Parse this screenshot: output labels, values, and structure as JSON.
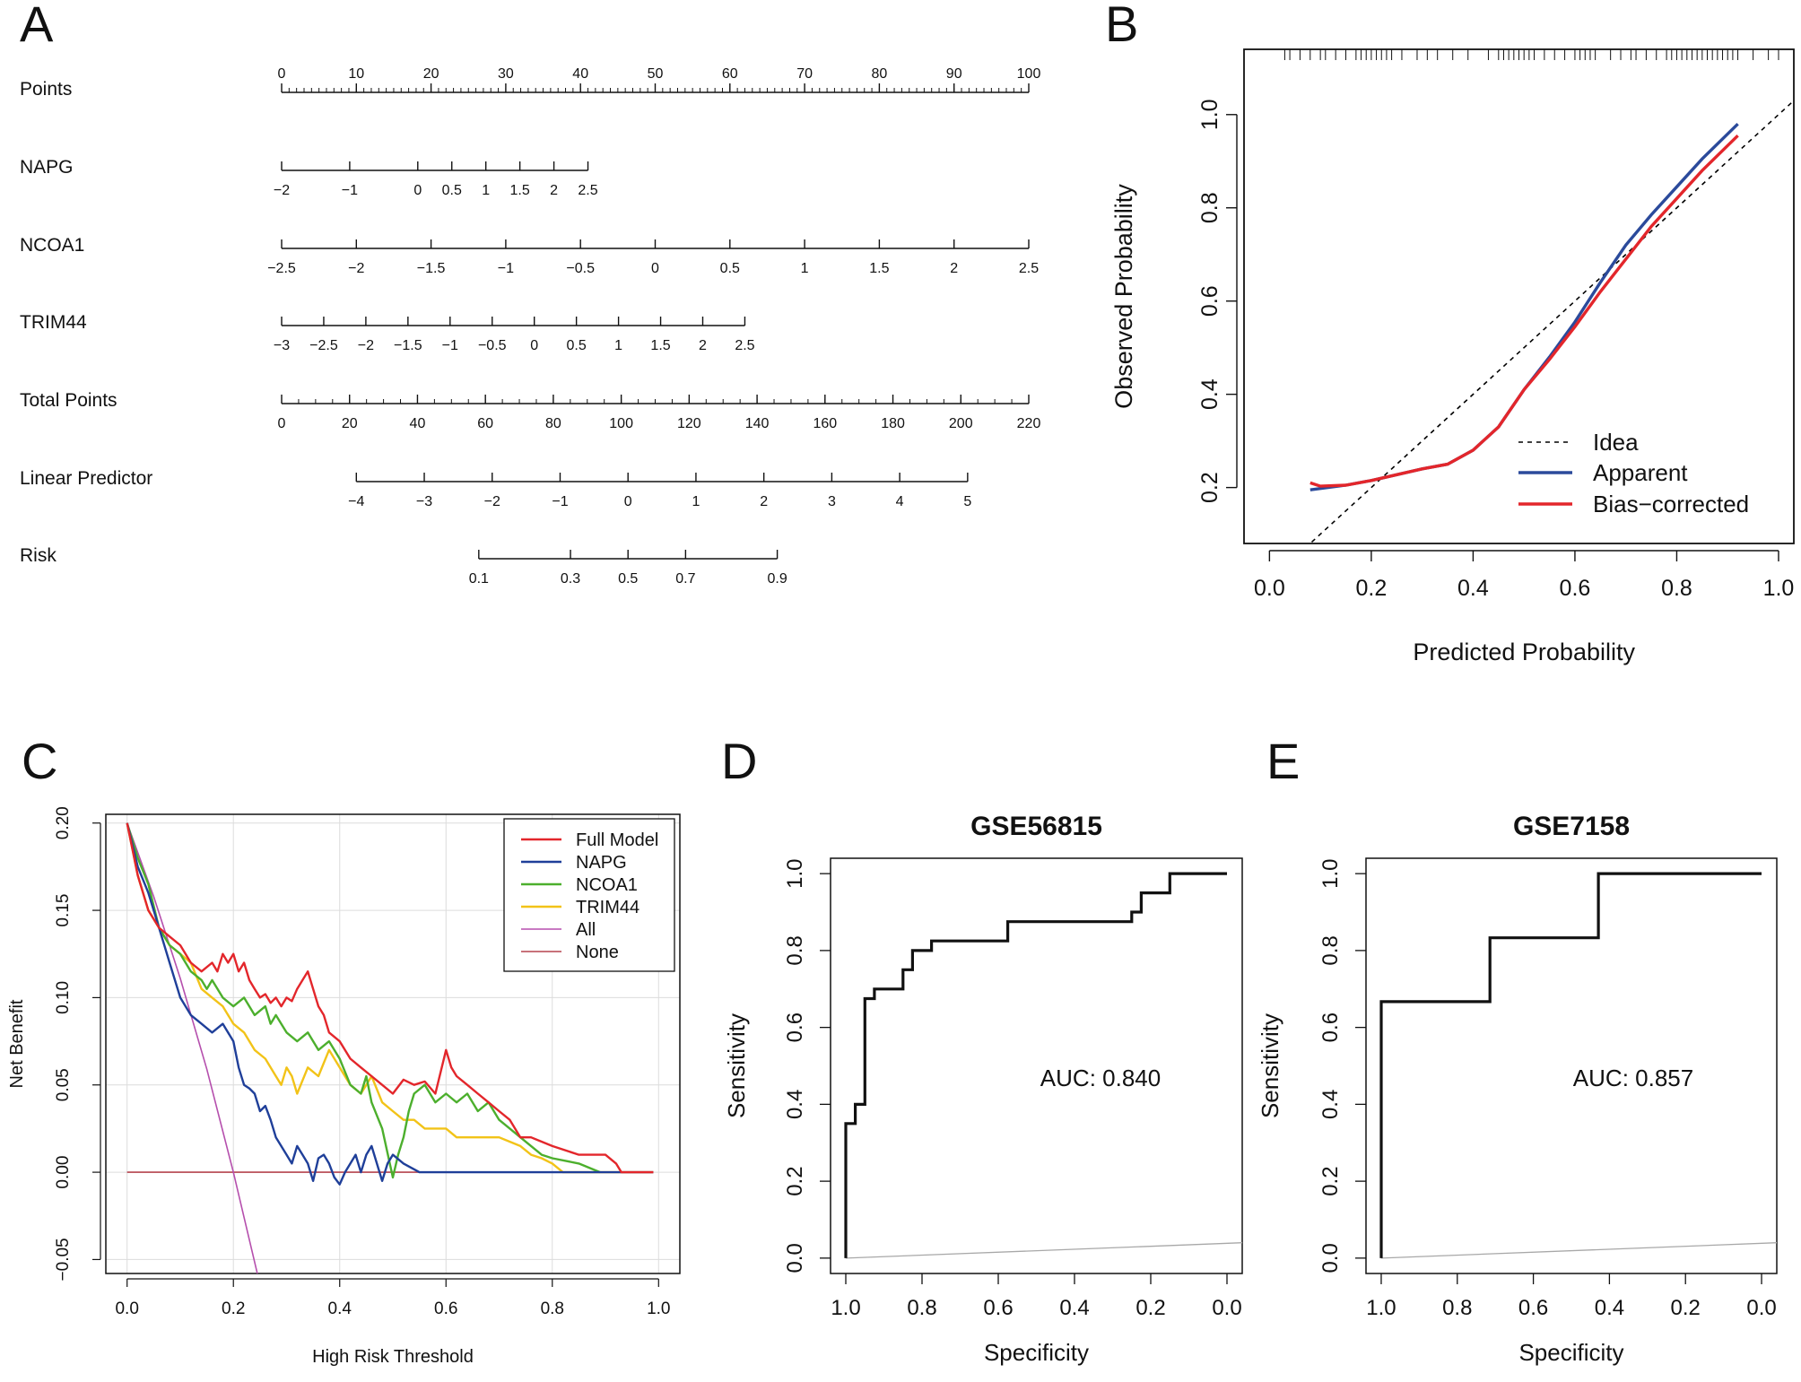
{
  "panels": {
    "A": "A",
    "B": "B",
    "C": "C",
    "D": "D",
    "E": "E"
  },
  "chart_data": [
    {
      "type": "nomogram",
      "panel": "A",
      "rows": [
        {
          "label": "Points",
          "ticks": [
            "0",
            "10",
            "20",
            "30",
            "40",
            "50",
            "60",
            "70",
            "80",
            "90",
            "100"
          ],
          "values": [
            0,
            10,
            20,
            30,
            40,
            50,
            60,
            70,
            80,
            90,
            100
          ],
          "minor": 1,
          "tick_side": "above"
        },
        {
          "label": "NAPG",
          "ticks": [
            "−2",
            "−1",
            "0",
            "0.5",
            "1",
            "1.5",
            "2",
            "2.5"
          ],
          "values": [
            -2,
            -1,
            0,
            0.5,
            1,
            1.5,
            2,
            2.5
          ],
          "points_range": [
            0,
            41
          ]
        },
        {
          "label": "NCOA1",
          "ticks": [
            "−2.5",
            "−2",
            "−1.5",
            "−1",
            "−0.5",
            "0",
            "0.5",
            "1",
            "1.5",
            "2",
            "2.5"
          ],
          "values": [
            -2.5,
            -2,
            -1.5,
            -1,
            -0.5,
            0,
            0.5,
            1,
            1.5,
            2,
            2.5
          ],
          "points_range": [
            0,
            100
          ]
        },
        {
          "label": "TRIM44",
          "ticks": [
            "−3",
            "−2.5",
            "−2",
            "−1.5",
            "−1",
            "−0.5",
            "0",
            "0.5",
            "1",
            "1.5",
            "2",
            "2.5"
          ],
          "values": [
            -3,
            -2.5,
            -2,
            -1.5,
            -1,
            -0.5,
            0,
            0.5,
            1,
            1.5,
            2,
            2.5
          ],
          "points_range": [
            0,
            62
          ]
        },
        {
          "label": "Total Points",
          "ticks": [
            "0",
            "20",
            "40",
            "60",
            "80",
            "100",
            "120",
            "140",
            "160",
            "180",
            "200",
            "220"
          ],
          "values": [
            0,
            20,
            40,
            60,
            80,
            100,
            120,
            140,
            160,
            180,
            200,
            220
          ],
          "minor": 5
        },
        {
          "label": "Linear Predictor",
          "ticks": [
            "−4",
            "−3",
            "−2",
            "−1",
            "0",
            "1",
            "2",
            "3",
            "4",
            "5"
          ],
          "values": [
            -4,
            -3,
            -2,
            -1,
            0,
            1,
            2,
            3,
            4,
            5
          ],
          "total_range": [
            22,
            202
          ]
        },
        {
          "label": "Risk",
          "ticks": [
            "0.1",
            "0.3",
            "0.5",
            "0.7",
            "0.9"
          ],
          "values": [
            0.1,
            0.3,
            0.5,
            0.7,
            0.9
          ]
        }
      ]
    },
    {
      "type": "line",
      "panel": "B",
      "title": "",
      "xlabel": "Predicted Probability",
      "ylabel": "Observed Probability",
      "xlim": [
        -0.05,
        1.03
      ],
      "ylim": [
        0.08,
        1.14
      ],
      "xticks": [
        "0.0",
        "0.2",
        "0.4",
        "0.6",
        "0.8",
        "1.0"
      ],
      "xtick_values": [
        0,
        0.2,
        0.4,
        0.6,
        0.8,
        1.0
      ],
      "yticks": [
        "0.2",
        "0.4",
        "0.6",
        "0.8",
        "1.0"
      ],
      "ytick_values": [
        0.2,
        0.4,
        0.6,
        0.8,
        1.0
      ],
      "rug": [
        0.03,
        0.04,
        0.06,
        0.08,
        0.1,
        0.11,
        0.13,
        0.15,
        0.17,
        0.18,
        0.19,
        0.2,
        0.21,
        0.22,
        0.23,
        0.24,
        0.26,
        0.29,
        0.31,
        0.33,
        0.36,
        0.39,
        0.43,
        0.45,
        0.46,
        0.47,
        0.48,
        0.49,
        0.5,
        0.51,
        0.52,
        0.54,
        0.56,
        0.58,
        0.6,
        0.61,
        0.62,
        0.63,
        0.64,
        0.67,
        0.69,
        0.71,
        0.72,
        0.74,
        0.76,
        0.78,
        0.79,
        0.8,
        0.81,
        0.82,
        0.83,
        0.84,
        0.85,
        0.86,
        0.87,
        0.88,
        0.89,
        0.9,
        0.91,
        0.92,
        0.95,
        0.98,
        1.0
      ],
      "series": [
        {
          "name": "Idea",
          "color": "#000000",
          "dash": true,
          "x": [
            0.07,
            1.03
          ],
          "y": [
            0.07,
            1.03
          ]
        },
        {
          "name": "Apparent",
          "color": "#2b4a9b",
          "x": [
            0.08,
            0.15,
            0.2,
            0.3,
            0.35,
            0.4,
            0.45,
            0.5,
            0.55,
            0.6,
            0.65,
            0.7,
            0.75,
            0.8,
            0.85,
            0.92
          ],
          "y": [
            0.195,
            0.205,
            0.215,
            0.24,
            0.25,
            0.28,
            0.33,
            0.41,
            0.48,
            0.555,
            0.64,
            0.72,
            0.785,
            0.845,
            0.905,
            0.98
          ]
        },
        {
          "name": "Bias−corrected",
          "color": "#e3262b",
          "x": [
            0.08,
            0.1,
            0.15,
            0.2,
            0.3,
            0.35,
            0.4,
            0.45,
            0.5,
            0.55,
            0.6,
            0.65,
            0.7,
            0.75,
            0.8,
            0.85,
            0.92
          ],
          "y": [
            0.21,
            0.203,
            0.205,
            0.215,
            0.24,
            0.25,
            0.28,
            0.33,
            0.41,
            0.475,
            0.545,
            0.62,
            0.69,
            0.76,
            0.82,
            0.88,
            0.955
          ]
        }
      ],
      "legend": "bottom-right"
    },
    {
      "type": "line",
      "panel": "C",
      "title": "",
      "xlabel": "High Risk Threshold",
      "ylabel": "Net Benefit",
      "xlim": [
        -0.04,
        1.04
      ],
      "ylim": [
        -0.058,
        0.205
      ],
      "xticks": [
        "0.0",
        "0.2",
        "0.4",
        "0.6",
        "0.8",
        "1.0"
      ],
      "xtick_values": [
        0,
        0.2,
        0.4,
        0.6,
        0.8,
        1.0
      ],
      "yticks": [
        "−0.05",
        "0.00",
        "0.05",
        "0.10",
        "0.15",
        "0.20"
      ],
      "ytick_values": [
        -0.05,
        0,
        0.05,
        0.1,
        0.15,
        0.2
      ],
      "grid": true,
      "series": [
        {
          "name": "Full Model",
          "color": "#e3262b",
          "x": [
            0,
            0.02,
            0.04,
            0.06,
            0.08,
            0.1,
            0.12,
            0.14,
            0.16,
            0.17,
            0.18,
            0.19,
            0.2,
            0.21,
            0.22,
            0.23,
            0.24,
            0.25,
            0.26,
            0.27,
            0.28,
            0.29,
            0.3,
            0.31,
            0.32,
            0.33,
            0.34,
            0.35,
            0.36,
            0.37,
            0.38,
            0.4,
            0.42,
            0.44,
            0.46,
            0.48,
            0.5,
            0.52,
            0.54,
            0.56,
            0.58,
            0.6,
            0.61,
            0.62,
            0.64,
            0.66,
            0.68,
            0.7,
            0.72,
            0.74,
            0.76,
            0.8,
            0.85,
            0.9,
            0.92,
            0.93,
            0.99
          ],
          "y": [
            0.2,
            0.17,
            0.15,
            0.14,
            0.135,
            0.13,
            0.12,
            0.115,
            0.12,
            0.115,
            0.125,
            0.12,
            0.125,
            0.115,
            0.12,
            0.11,
            0.105,
            0.1,
            0.102,
            0.097,
            0.1,
            0.095,
            0.1,
            0.098,
            0.105,
            0.11,
            0.115,
            0.105,
            0.095,
            0.09,
            0.08,
            0.075,
            0.065,
            0.06,
            0.055,
            0.05,
            0.045,
            0.053,
            0.05,
            0.052,
            0.045,
            0.07,
            0.06,
            0.055,
            0.05,
            0.045,
            0.04,
            0.035,
            0.03,
            0.02,
            0.02,
            0.015,
            0.01,
            0.01,
            0.005,
            0,
            0
          ]
        },
        {
          "name": "NAPG",
          "color": "#1f3f99",
          "x": [
            0,
            0.02,
            0.04,
            0.06,
            0.08,
            0.1,
            0.12,
            0.14,
            0.16,
            0.18,
            0.2,
            0.21,
            0.22,
            0.23,
            0.24,
            0.25,
            0.26,
            0.27,
            0.28,
            0.3,
            0.31,
            0.32,
            0.33,
            0.34,
            0.35,
            0.36,
            0.37,
            0.38,
            0.39,
            0.4,
            0.41,
            0.42,
            0.43,
            0.44,
            0.45,
            0.46,
            0.48,
            0.49,
            0.5,
            0.52,
            0.55,
            0.6,
            0.7,
            0.8,
            0.99
          ],
          "y": [
            0.2,
            0.175,
            0.16,
            0.14,
            0.12,
            0.1,
            0.09,
            0.085,
            0.08,
            0.085,
            0.075,
            0.06,
            0.05,
            0.048,
            0.045,
            0.035,
            0.038,
            0.03,
            0.02,
            0.01,
            0.005,
            0.015,
            0.01,
            0.005,
            -0.005,
            0.008,
            0.01,
            0.005,
            -0.003,
            -0.007,
            0.0,
            0.005,
            0.01,
            0.0,
            0.01,
            0.015,
            -0.005,
            0.005,
            0.01,
            0.005,
            0,
            0,
            0,
            0,
            0
          ]
        },
        {
          "name": "NCOA1",
          "color": "#4caf2d",
          "x": [
            0,
            0.02,
            0.04,
            0.06,
            0.08,
            0.1,
            0.12,
            0.14,
            0.15,
            0.16,
            0.18,
            0.2,
            0.22,
            0.24,
            0.26,
            0.27,
            0.28,
            0.3,
            0.32,
            0.34,
            0.36,
            0.38,
            0.4,
            0.42,
            0.44,
            0.45,
            0.46,
            0.48,
            0.5,
            0.51,
            0.52,
            0.53,
            0.54,
            0.56,
            0.58,
            0.6,
            0.62,
            0.64,
            0.66,
            0.68,
            0.7,
            0.72,
            0.74,
            0.76,
            0.78,
            0.8,
            0.85,
            0.89
          ],
          "y": [
            0.2,
            0.18,
            0.165,
            0.14,
            0.13,
            0.125,
            0.115,
            0.11,
            0.105,
            0.11,
            0.1,
            0.095,
            0.1,
            0.09,
            0.095,
            0.085,
            0.09,
            0.08,
            0.075,
            0.08,
            0.07,
            0.075,
            0.065,
            0.05,
            0.045,
            0.055,
            0.04,
            0.025,
            -0.003,
            0.01,
            0.02,
            0.035,
            0.045,
            0.05,
            0.04,
            0.045,
            0.04,
            0.045,
            0.035,
            0.04,
            0.03,
            0.025,
            0.02,
            0.015,
            0.01,
            0.008,
            0.005,
            0
          ]
        },
        {
          "name": "TRIM44",
          "color": "#f2c318",
          "x": [
            0,
            0.02,
            0.04,
            0.06,
            0.08,
            0.1,
            0.12,
            0.14,
            0.16,
            0.18,
            0.2,
            0.22,
            0.24,
            0.26,
            0.28,
            0.29,
            0.3,
            0.31,
            0.32,
            0.34,
            0.36,
            0.38,
            0.4,
            0.42,
            0.44,
            0.46,
            0.48,
            0.5,
            0.52,
            0.54,
            0.56,
            0.58,
            0.6,
            0.62,
            0.64,
            0.66,
            0.7,
            0.74,
            0.76,
            0.78,
            0.8,
            0.82,
            0.99
          ],
          "y": [
            0.2,
            0.17,
            0.15,
            0.14,
            0.13,
            0.125,
            0.12,
            0.105,
            0.1,
            0.095,
            0.085,
            0.08,
            0.07,
            0.065,
            0.055,
            0.05,
            0.06,
            0.055,
            0.045,
            0.06,
            0.055,
            0.07,
            0.06,
            0.05,
            0.045,
            0.055,
            0.04,
            0.035,
            0.03,
            0.03,
            0.025,
            0.025,
            0.025,
            0.02,
            0.02,
            0.02,
            0.02,
            0.015,
            0.01,
            0.008,
            0.005,
            0,
            0
          ]
        },
        {
          "name": "All",
          "color": "#b54fad",
          "x": [
            0,
            0.05,
            0.1,
            0.15,
            0.2,
            0.245
          ],
          "y": [
            0.2,
            0.158,
            0.111,
            0.059,
            0.0,
            -0.058
          ]
        },
        {
          "name": "None",
          "color": "#b5434e",
          "x": [
            0,
            0.99
          ],
          "y": [
            0,
            0
          ]
        }
      ],
      "legend": "top-right"
    },
    {
      "type": "roc",
      "panel": "D",
      "title": "GSE56815",
      "xlabel": "Specificity",
      "ylabel": "Sensitivity",
      "auc_label": "AUC: 0.840",
      "xticks": [
        "1.0",
        "0.8",
        "0.6",
        "0.4",
        "0.2",
        "0.0"
      ],
      "xtick_values": [
        1.0,
        0.8,
        0.6,
        0.4,
        0.2,
        0.0
      ],
      "yticks": [
        "0.0",
        "0.2",
        "0.4",
        "0.6",
        "0.8",
        "1.0"
      ],
      "ytick_values": [
        0,
        0.2,
        0.4,
        0.6,
        0.8,
        1.0
      ],
      "specificity": [
        1.0,
        1.0,
        0.975,
        0.975,
        0.95,
        0.95,
        0.925,
        0.925,
        0.85,
        0.85,
        0.825,
        0.825,
        0.775,
        0.775,
        0.575,
        0.575,
        0.25,
        0.25,
        0.225,
        0.225,
        0.15,
        0.15,
        0.0
      ],
      "sensitivity": [
        0.0,
        0.35,
        0.35,
        0.4,
        0.4,
        0.675,
        0.675,
        0.7,
        0.7,
        0.75,
        0.75,
        0.8,
        0.8,
        0.825,
        0.825,
        0.875,
        0.875,
        0.9,
        0.9,
        0.95,
        0.95,
        1.0,
        1.0
      ]
    },
    {
      "type": "roc",
      "panel": "E",
      "title": "GSE7158",
      "xlabel": "Specificity",
      "ylabel": "Sensitivity",
      "auc_label": "AUC: 0.857",
      "xticks": [
        "1.0",
        "0.8",
        "0.6",
        "0.4",
        "0.2",
        "0.0"
      ],
      "xtick_values": [
        1.0,
        0.8,
        0.6,
        0.4,
        0.2,
        0.0
      ],
      "yticks": [
        "0.0",
        "0.2",
        "0.4",
        "0.6",
        "0.8",
        "1.0"
      ],
      "ytick_values": [
        0,
        0.2,
        0.4,
        0.6,
        0.8,
        1.0
      ],
      "specificity": [
        1.0,
        1.0,
        0.714,
        0.714,
        0.429,
        0.429,
        0.0
      ],
      "sensitivity": [
        0.0,
        0.667,
        0.667,
        0.833,
        0.833,
        1.0,
        1.0
      ]
    }
  ]
}
